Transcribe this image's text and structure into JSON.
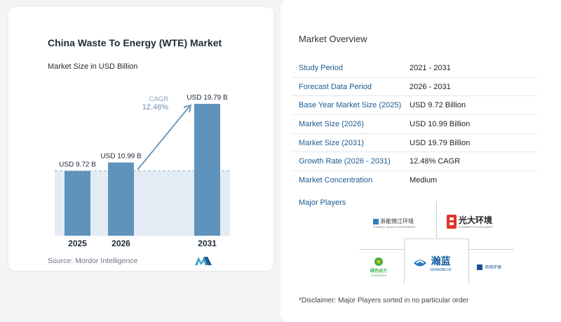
{
  "chart_data": {
    "type": "bar",
    "title": "China Waste To Energy (WTE) Market",
    "subtitle": "Market Size in USD Billion",
    "categories": [
      "2025",
      "2026",
      "2031"
    ],
    "values": [
      9.72,
      10.99,
      19.79
    ],
    "value_labels": [
      "USD 9.72 B",
      "USD 10.99 B",
      "USD 19.79 B"
    ],
    "cagr_label": "CAGR",
    "cagr_value": "12.48%",
    "ylim": [
      0,
      22
    ],
    "colors": {
      "bar": "#5f93bb",
      "bar_light": "#7fb0d2",
      "shade": "#e3ecf4",
      "arrow": "#6e9dc2",
      "dashed": "#8fb4d1"
    }
  },
  "source": "Source:  Mordor Intelligence",
  "overview": {
    "title": "Market Overview",
    "rows": [
      {
        "key": "Study Period",
        "value": "2021 - 2031"
      },
      {
        "key": "Forecast Data Period",
        "value": "2026 - 2031"
      },
      {
        "key": "Base Year Market Size (2025)",
        "value": "USD 9.72 Billion"
      },
      {
        "key": "Market Size (2026)",
        "value": "USD 10.99 Billion"
      },
      {
        "key": "Market Size (2031)",
        "value": "USD 19.79 Billion"
      },
      {
        "key": "Growth Rate (2026 - 2031)",
        "value": "12.48% CAGR"
      },
      {
        "key": "Market Concentration",
        "value": "Medium"
      }
    ]
  },
  "players": {
    "title": "Major Players",
    "names": [
      "浙能锦江环境",
      "光大环境",
      "瀚蓝",
      "绿色动力",
      "伟明环保"
    ],
    "subnames": [
      "ZHENENG JINJIANG ENVIRONMENT",
      "EVERBRIGHT ENVIRONMENT",
      "GRANDBLUE",
      "DYNAGREEN"
    ]
  },
  "disclaimer": "*Disclaimer: Major Players sorted in no particular order"
}
